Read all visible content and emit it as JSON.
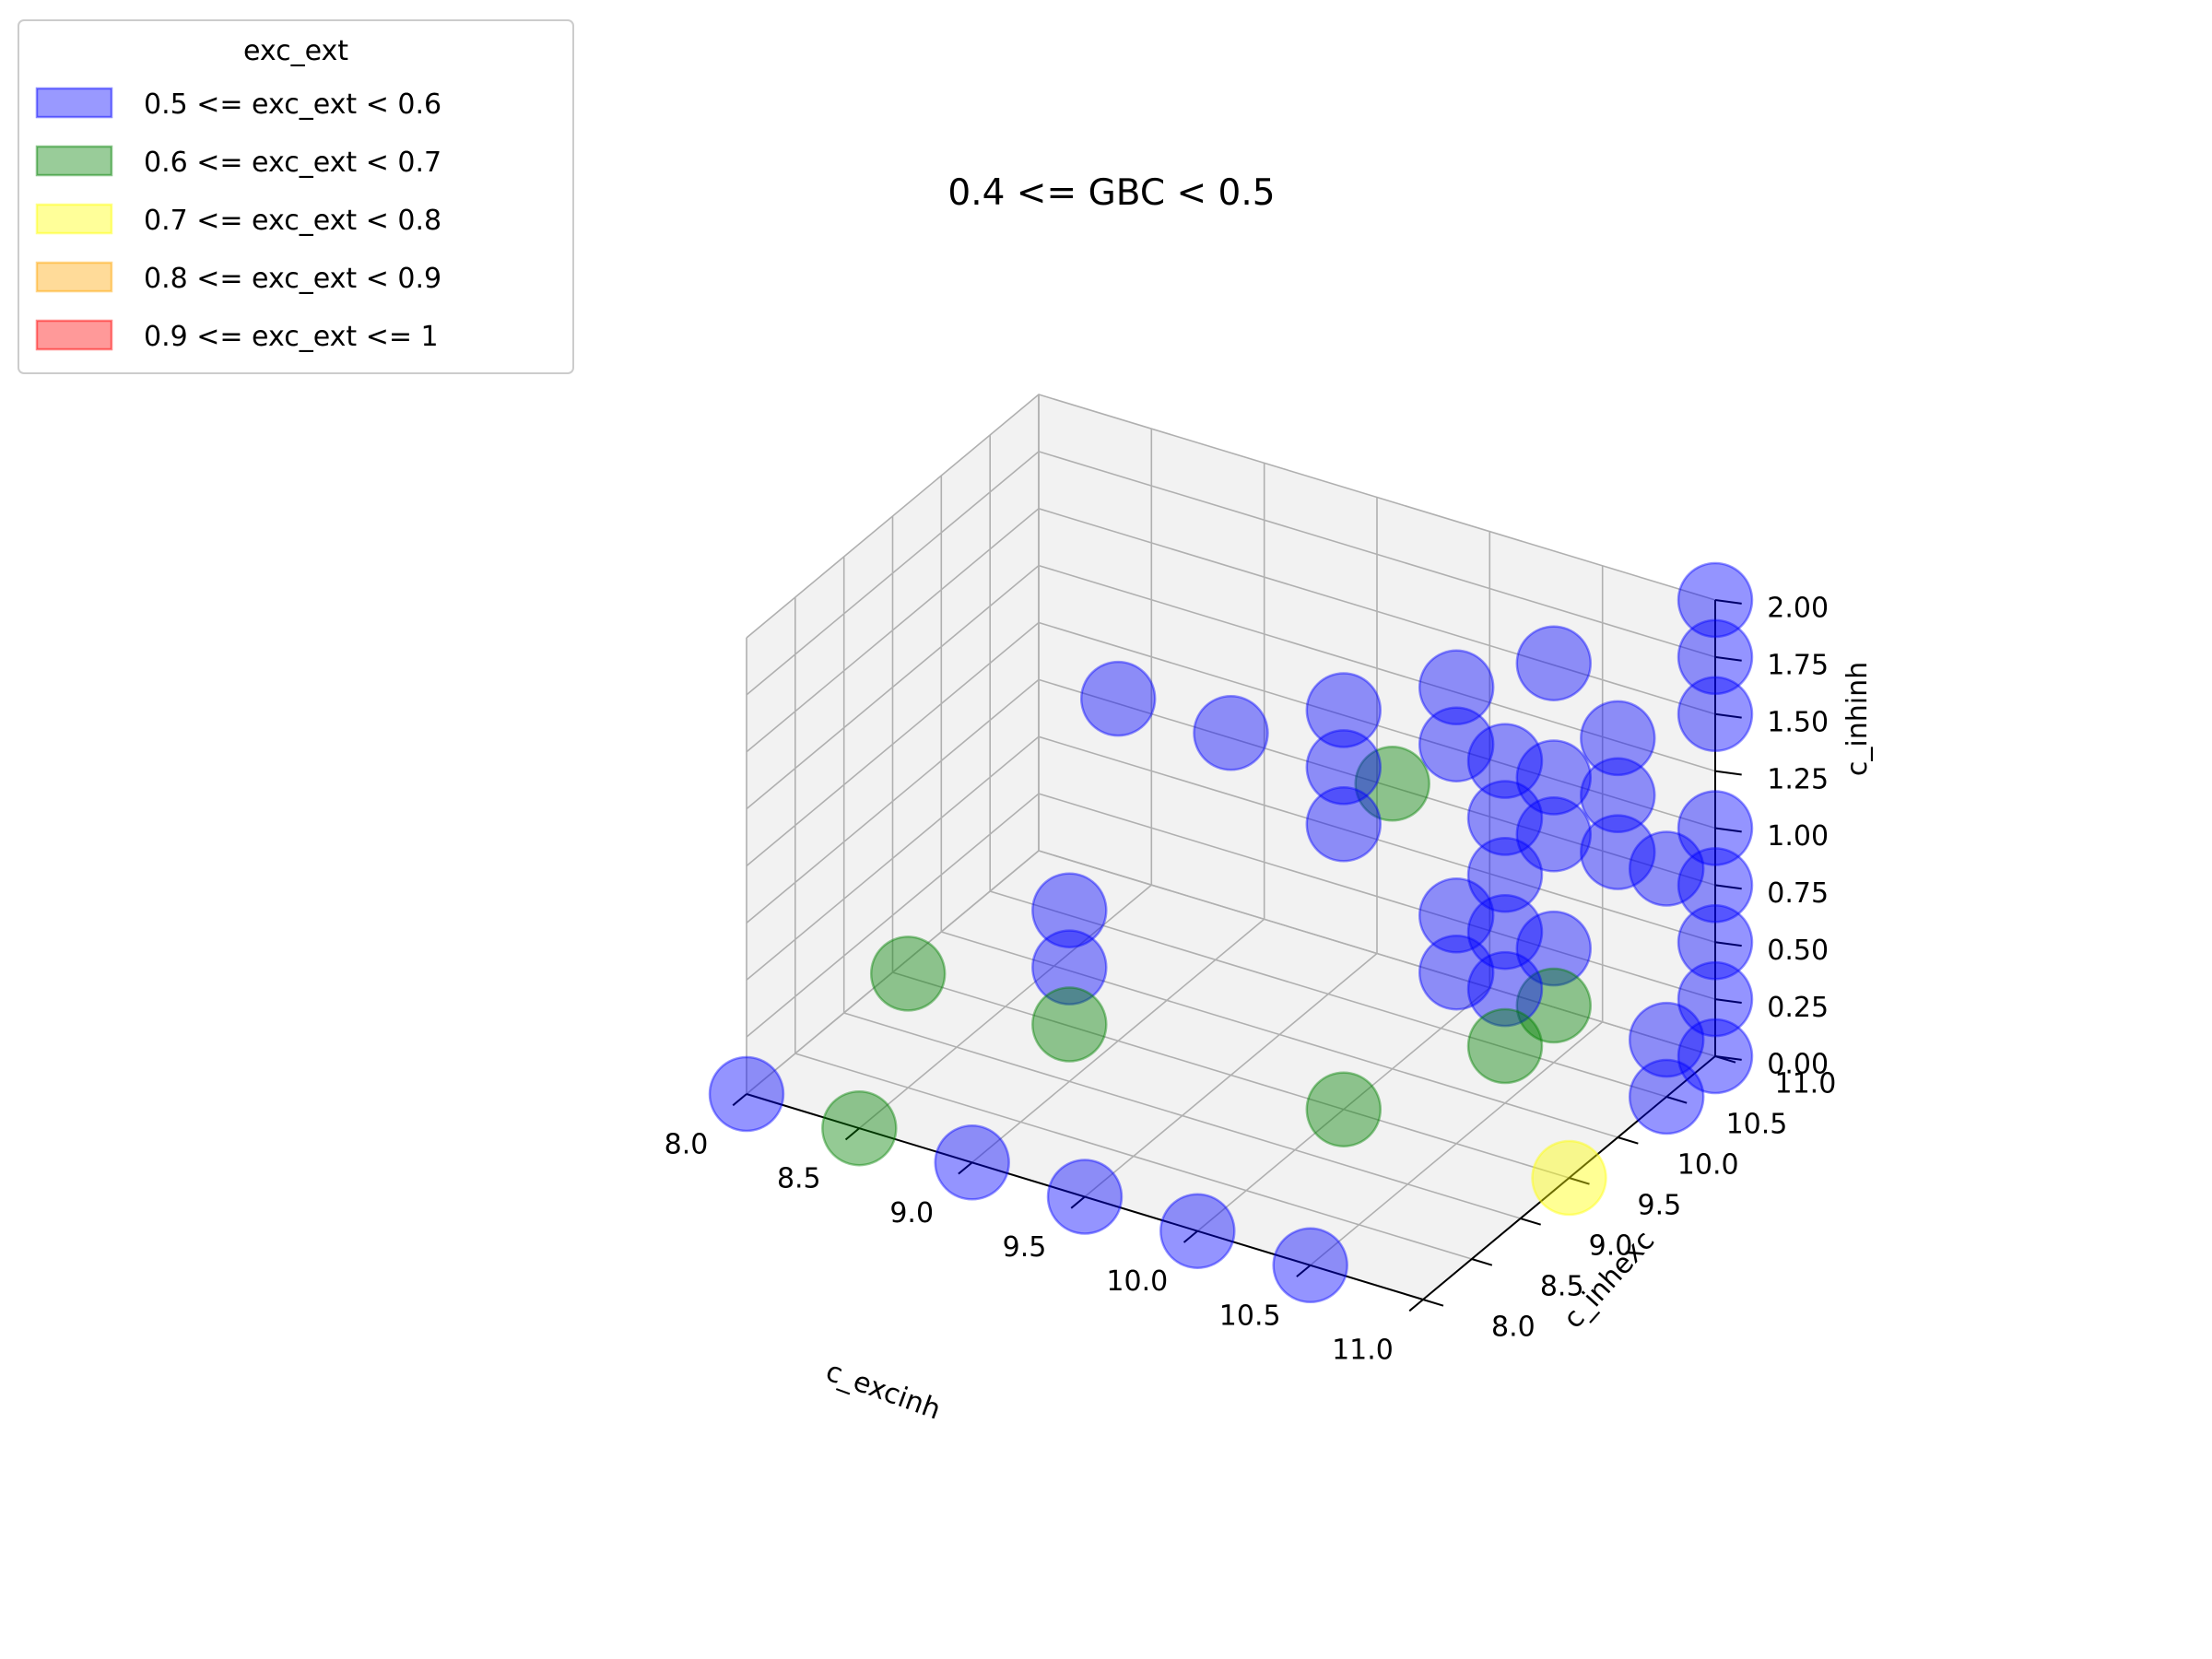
{
  "chart_data": {
    "type": "scatter",
    "projection": "3d",
    "title": "0.4 <= GBC < 0.5",
    "xlabel": "c_excinh",
    "ylabel": "c_inhexc",
    "zlabel": "c_inhinh",
    "xlim": [
      8.0,
      11.0
    ],
    "ylim": [
      8.0,
      11.0
    ],
    "zlim": [
      0.0,
      2.0
    ],
    "xticks": [
      "8.0",
      "8.5",
      "9.0",
      "9.5",
      "10.0",
      "10.5",
      "11.0"
    ],
    "yticks": [
      "8.0",
      "8.5",
      "9.0",
      "9.5",
      "10.0",
      "10.5",
      "11.0"
    ],
    "zticks": [
      "0.00",
      "0.25",
      "0.50",
      "0.75",
      "1.00",
      "1.25",
      "1.50",
      "1.75",
      "2.00"
    ],
    "grid": true,
    "legend": {
      "title": "exc_ext",
      "position": "top-left",
      "entries": [
        {
          "label": "0.5 <= exc_ext < 0.6",
          "color": "#0000ff"
        },
        {
          "label": "0.6 <= exc_ext < 0.7",
          "color": "#008000"
        },
        {
          "label": "0.7 <= exc_ext < 0.8",
          "color": "#ffff00"
        },
        {
          "label": "0.8 <= exc_ext < 0.9",
          "color": "#ffa500"
        },
        {
          "label": "0.9 <= exc_ext <= 1",
          "color": "#ff0000"
        }
      ]
    },
    "series": [
      {
        "name": "0.5 <= exc_ext < 0.6",
        "color": "#0000ff",
        "points": [
          {
            "x": 8.0,
            "y": 8.0,
            "z": 0.0
          },
          {
            "x": 9.0,
            "y": 8.0,
            "z": 0.0
          },
          {
            "x": 9.5,
            "y": 8.0,
            "z": 0.0
          },
          {
            "x": 10.0,
            "y": 8.0,
            "z": 0.0
          },
          {
            "x": 10.5,
            "y": 8.0,
            "z": 0.0
          },
          {
            "x": 9.0,
            "y": 9.0,
            "z": 0.75
          },
          {
            "x": 9.0,
            "y": 9.0,
            "z": 0.5
          },
          {
            "x": 9.0,
            "y": 9.5,
            "z": 1.5
          },
          {
            "x": 9.5,
            "y": 9.5,
            "z": 1.5
          },
          {
            "x": 10.5,
            "y": 9.5,
            "z": 0.75
          },
          {
            "x": 10.5,
            "y": 9.5,
            "z": 1.0
          },
          {
            "x": 10.0,
            "y": 9.5,
            "z": 1.75
          },
          {
            "x": 10.0,
            "y": 9.5,
            "z": 1.5
          },
          {
            "x": 10.0,
            "y": 9.5,
            "z": 1.25
          },
          {
            "x": 10.5,
            "y": 9.5,
            "z": 2.0
          },
          {
            "x": 10.5,
            "y": 9.5,
            "z": 1.75
          },
          {
            "x": 10.5,
            "y": 10.0,
            "z": 0.5
          },
          {
            "x": 10.5,
            "y": 10.0,
            "z": 0.75
          },
          {
            "x": 10.5,
            "y": 10.5,
            "z": 0.5
          },
          {
            "x": 10.5,
            "y": 10.0,
            "z": 1.5
          },
          {
            "x": 10.5,
            "y": 10.0,
            "z": 1.25
          },
          {
            "x": 10.5,
            "y": 10.5,
            "z": 1.0
          },
          {
            "x": 10.5,
            "y": 10.5,
            "z": 1.25
          },
          {
            "x": 10.5,
            "y": 10.5,
            "z": 1.75
          },
          {
            "x": 11.0,
            "y": 10.0,
            "z": 1.75
          },
          {
            "x": 11.0,
            "y": 10.0,
            "z": 1.5
          },
          {
            "x": 11.0,
            "y": 10.0,
            "z": 1.25
          },
          {
            "x": 11.0,
            "y": 10.5,
            "z": 0.0
          },
          {
            "x": 11.0,
            "y": 10.5,
            "z": 0.25
          },
          {
            "x": 11.0,
            "y": 11.0,
            "z": 0.0
          },
          {
            "x": 11.0,
            "y": 11.0,
            "z": 0.25
          },
          {
            "x": 11.0,
            "y": 11.0,
            "z": 0.5
          },
          {
            "x": 11.0,
            "y": 11.0,
            "z": 1.0
          },
          {
            "x": 11.0,
            "y": 11.0,
            "z": 1.75
          },
          {
            "x": 11.0,
            "y": 11.0,
            "z": 1.5
          },
          {
            "x": 11.0,
            "y": 11.0,
            "z": 2.0
          },
          {
            "x": 11.0,
            "y": 11.0,
            "z": 0.75
          },
          {
            "x": 11.0,
            "y": 10.5,
            "z": 1.0
          },
          {
            "x": 10.5,
            "y": 10.0,
            "z": 1.0
          }
        ]
      },
      {
        "name": "0.6 <= exc_ext < 0.7",
        "color": "#008000",
        "points": [
          {
            "x": 8.5,
            "y": 8.0,
            "z": 0.0
          },
          {
            "x": 8.5,
            "y": 8.5,
            "z": 0.5
          },
          {
            "x": 9.0,
            "y": 9.0,
            "z": 0.25
          },
          {
            "x": 10.0,
            "y": 9.5,
            "z": 0.0
          },
          {
            "x": 10.5,
            "y": 10.0,
            "z": 0.25
          },
          {
            "x": 10.5,
            "y": 10.5,
            "z": 0.25
          },
          {
            "x": 10.0,
            "y": 10.0,
            "z": 1.25
          }
        ]
      },
      {
        "name": "0.7 <= exc_ext < 0.8",
        "color": "#ffff00",
        "points": [
          {
            "x": 11.0,
            "y": 9.5,
            "z": 0.0
          }
        ]
      }
    ]
  }
}
